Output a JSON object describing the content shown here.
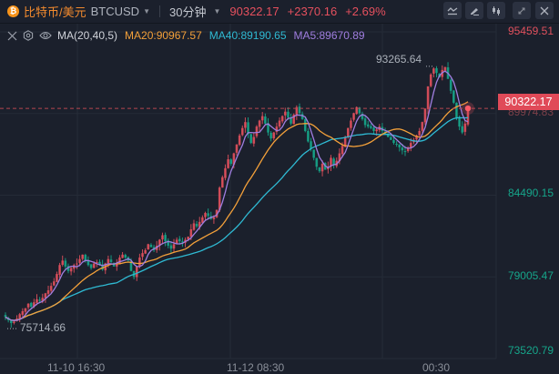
{
  "header": {
    "coin_icon": "bitcoin-icon",
    "symbol_cn": "比特币/美元",
    "symbol": "BTCUSD",
    "interval": "30分钟",
    "last_price": "90322.17",
    "change": "+2370.16",
    "change_pct": "+2.69%",
    "toolbar": [
      {
        "name": "indicator-button",
        "icon": "indicator-icon"
      },
      {
        "name": "draw-button",
        "icon": "pencil-icon"
      },
      {
        "name": "chart-type-button",
        "icon": "candlestick-icon"
      },
      {
        "name": "fullscreen-button",
        "icon": "expand-icon"
      },
      {
        "name": "close-button",
        "icon": "close-icon"
      }
    ]
  },
  "legend": {
    "label": "MA(20,40,5)",
    "ma20": "MA20:90967.57",
    "ma40": "MA40:89190.65",
    "ma5": "MA5:89670.89"
  },
  "y_axis": {
    "labels": [
      "95459.51",
      "84490.15",
      "79005.47",
      "73520.79"
    ],
    "hidden_label": "89974.83",
    "current_price_tag": "90322.17"
  },
  "x_axis": {
    "labels": [
      "11-10 16:30",
      "11-12 08:30",
      "00:30"
    ]
  },
  "annotations": {
    "high": "93265.64",
    "low": "75714.66"
  },
  "colors": {
    "up": "#e0505d",
    "down": "#16a58a",
    "ma5": "#a07ee0",
    "ma20": "#f3a03a",
    "ma40": "#2fbad3",
    "background": "#1b202c",
    "grid": "#252b37"
  },
  "chart_data": {
    "type": "candlestick",
    "title": "比特币/美元 BTCUSD 30分钟",
    "xlabel": "",
    "ylabel": "",
    "ylim": [
      73520.79,
      95459.51
    ],
    "x_tick_labels": [
      "11-10 16:30",
      "11-12 08:30",
      "00:30"
    ],
    "y_tick_labels": [
      "95459.51",
      "89974.83",
      "84490.15",
      "79005.47",
      "73520.79"
    ],
    "last_price": 90322.17,
    "high_marker": 93265.64,
    "low_marker": 75714.66,
    "series": [
      {
        "name": "MA20",
        "last": 90967.57
      },
      {
        "name": "MA40",
        "last": 89190.65
      },
      {
        "name": "MA5",
        "last": 89670.89
      }
    ],
    "close_path": [
      76300,
      76100,
      75900,
      76000,
      76200,
      76500,
      76700,
      76900,
      77200,
      77000,
      77300,
      77500,
      77400,
      77600,
      77900,
      78100,
      78400,
      78700,
      79200,
      79800,
      80100,
      79700,
      79400,
      79600,
      79800,
      79900,
      80200,
      80500,
      80100,
      79800,
      79600,
      79900,
      80000,
      79800,
      79500,
      79900,
      80200,
      80000,
      79700,
      79900,
      80300,
      80500,
      80300,
      80100,
      79400,
      79000,
      79700,
      80300,
      80600,
      80800,
      81200,
      81000,
      80800,
      81100,
      81500,
      81800,
      81400,
      81100,
      80900,
      81200,
      81500,
      81400,
      81300,
      81500,
      81700,
      82200,
      82600,
      82400,
      82700,
      83000,
      83300,
      83100,
      82900,
      83000,
      83500,
      85000,
      85700,
      86300,
      86900,
      86600,
      87300,
      87900,
      88500,
      89000,
      89400,
      88600,
      88000,
      88400,
      89100,
      89500,
      89800,
      89300,
      88700,
      88300,
      88700,
      89100,
      89500,
      89800,
      90100,
      89700,
      89300,
      89900,
      90400,
      90000,
      89600,
      88800,
      88100,
      87600,
      87000,
      86400,
      86100,
      86600,
      86200,
      86400,
      87000,
      86500,
      86800,
      87300,
      87800,
      88400,
      89000,
      89500,
      90000,
      90400,
      90000,
      89600,
      89200,
      89100,
      89000,
      88800,
      88900,
      89100,
      88800,
      88600,
      88400,
      88200,
      88000,
      87900,
      87700,
      87500,
      87400,
      87700,
      88000,
      88200,
      88500,
      88800,
      89400,
      90300,
      91800,
      92600,
      93000,
      92700,
      92400,
      92900,
      93100,
      92300,
      91500,
      90700,
      89700,
      89100,
      88700,
      89300,
      90322
    ]
  }
}
